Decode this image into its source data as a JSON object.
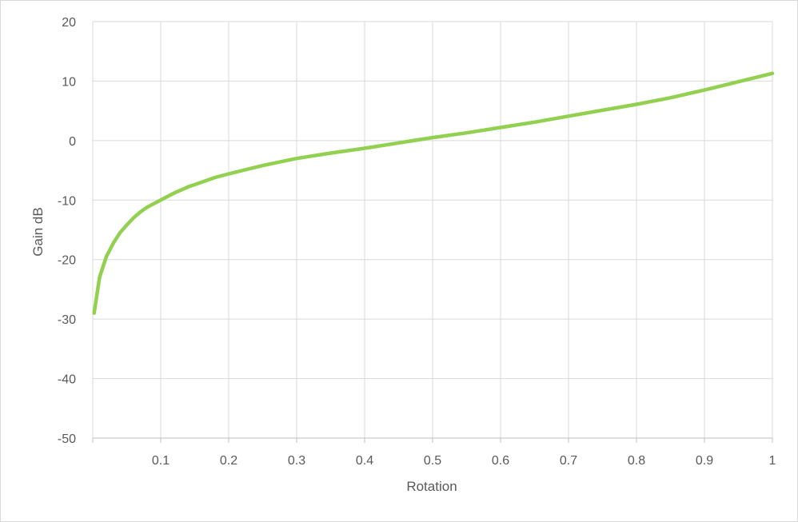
{
  "chart_data": {
    "type": "line",
    "title": "",
    "xlabel": "Rotation",
    "ylabel": "Gain dB",
    "xlim": [
      0,
      1
    ],
    "ylim": [
      -50,
      20
    ],
    "x_ticks": [
      0.1,
      0.2,
      0.3,
      0.4,
      0.5,
      0.6,
      0.7,
      0.8,
      0.9,
      1
    ],
    "x_tick_labels": [
      "0.1",
      "0.2",
      "0.3",
      "0.4",
      "0.5",
      "0.6",
      "0.7",
      "0.8",
      "0.9",
      "1"
    ],
    "y_ticks": [
      20,
      10,
      0,
      -10,
      -20,
      -30,
      -40,
      -50
    ],
    "y_tick_labels": [
      "20",
      "10",
      "0",
      "-10",
      "-20",
      "-30",
      "-40",
      "-50"
    ],
    "grid": true,
    "legend": "none",
    "series": [
      {
        "color": "#92d050",
        "x": [
          0.002,
          0.01,
          0.02,
          0.03,
          0.04,
          0.05,
          0.06,
          0.07,
          0.08,
          0.09,
          0.1,
          0.12,
          0.14,
          0.16,
          0.18,
          0.2,
          0.25,
          0.3,
          0.35,
          0.4,
          0.45,
          0.5,
          0.55,
          0.6,
          0.65,
          0.7,
          0.75,
          0.8,
          0.85,
          0.9,
          0.95,
          1.0
        ],
        "y": [
          -29,
          -23,
          -19.5,
          -17.3,
          -15.5,
          -14.2,
          -13,
          -12,
          -11.2,
          -10.6,
          -10,
          -8.8,
          -7.8,
          -7,
          -6.2,
          -5.6,
          -4.2,
          -3,
          -2.1,
          -1.3,
          -0.4,
          0.5,
          1.3,
          2.2,
          3.1,
          4.1,
          5.1,
          6.1,
          7.2,
          8.5,
          9.9,
          11.3
        ]
      }
    ]
  },
  "colors": {
    "line": "#92d050",
    "grid": "#d9d9d9",
    "text": "#595959",
    "axis": "#bfbfbf"
  }
}
